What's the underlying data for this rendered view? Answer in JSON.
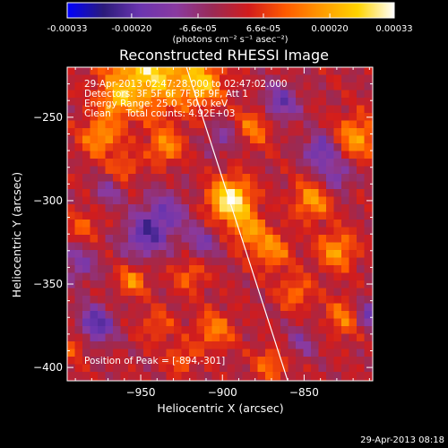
{
  "colors": {
    "background": "#000000",
    "foreground": "#ffffff",
    "limb": "#ffffff",
    "colormap": [
      "#0000ff",
      "#2b1b7a",
      "#6b35b0",
      "#8a3aa0",
      "#9a2a55",
      "#d21c1c",
      "#ff5a00",
      "#ff9a00",
      "#ffd400",
      "#ffffff"
    ]
  },
  "colorbar": {
    "min": -0.00033,
    "max": 0.00033,
    "tick_labels": [
      "-0.00033",
      "-0.00020",
      "-6.6e-05",
      "6.6e-05",
      "0.00020",
      "0.00033"
    ],
    "tick_values": [
      -0.00033,
      -0.0002,
      -6.6e-05,
      6.6e-05,
      0.0002,
      0.00033
    ],
    "units_label": "(photons cm⁻² s⁻¹ asec⁻²)"
  },
  "chart_data": {
    "type": "heatmap",
    "title": "Reconstructed RHESSI Image",
    "xlabel": "Heliocentric X (arcsec)",
    "ylabel": "Heliocentric Y (arcsec)",
    "xlim": [
      -995,
      -808
    ],
    "ylim": [
      -408,
      -220
    ],
    "x_ticks": [
      -950,
      -900,
      -850
    ],
    "y_ticks": [
      -250,
      -300,
      -350,
      -400
    ],
    "x_tick_labels": [
      "−950",
      "−900",
      "−850"
    ],
    "y_tick_labels": [
      "−250",
      "−300",
      "−350",
      "−400"
    ],
    "peak": [
      -894,
      -301
    ],
    "limb_points": [
      [
        -922,
        -220
      ],
      [
        -860,
        -408
      ]
    ],
    "annotations": {
      "time_range": "29-Apr-2013 02:47:28.000 to 02:47:02.000",
      "detectors": "Detectors: 3F 5F 6F 7F 8F 9F, Att 1",
      "energy": "Energy Range: 25.0 - 50.0 keV",
      "clean": "Clean     Total counts: 4.92E+03",
      "peak_position": "Position of Peak = [-894,-301]"
    },
    "hotspots": [
      {
        "x": -895,
        "y": -300,
        "amp": 1.0,
        "sigma": 9
      },
      {
        "x": -945,
        "y": -222,
        "amp": 0.8,
        "sigma": 18
      },
      {
        "x": -912,
        "y": -230,
        "amp": 0.6,
        "sigma": 9
      },
      {
        "x": -975,
        "y": -262,
        "amp": 0.55,
        "sigma": 8
      },
      {
        "x": -935,
        "y": -268,
        "amp": 0.5,
        "sigma": 7
      },
      {
        "x": -960,
        "y": -280,
        "amp": 0.35,
        "sigma": 6
      },
      {
        "x": -880,
        "y": -255,
        "amp": 0.45,
        "sigma": 8
      },
      {
        "x": -818,
        "y": -262,
        "amp": 0.55,
        "sigma": 9
      },
      {
        "x": -845,
        "y": -300,
        "amp": 0.55,
        "sigma": 8
      },
      {
        "x": -830,
        "y": -330,
        "amp": 0.55,
        "sigma": 8
      },
      {
        "x": -870,
        "y": -330,
        "amp": 0.5,
        "sigma": 8
      },
      {
        "x": -884,
        "y": -318,
        "amp": 0.5,
        "sigma": 7
      },
      {
        "x": -955,
        "y": -348,
        "amp": 0.5,
        "sigma": 6
      },
      {
        "x": -920,
        "y": -345,
        "amp": 0.35,
        "sigma": 7
      },
      {
        "x": -855,
        "y": -355,
        "amp": 0.4,
        "sigma": 7
      },
      {
        "x": -825,
        "y": -370,
        "amp": 0.45,
        "sigma": 8
      },
      {
        "x": -940,
        "y": -375,
        "amp": 0.3,
        "sigma": 7
      },
      {
        "x": -905,
        "y": -378,
        "amp": 0.45,
        "sigma": 8
      },
      {
        "x": -870,
        "y": -398,
        "amp": 0.4,
        "sigma": 7
      },
      {
        "x": -990,
        "y": -385,
        "amp": 0.35,
        "sigma": 7
      },
      {
        "x": -985,
        "y": -315,
        "amp": 0.3,
        "sigma": 7
      },
      {
        "x": -925,
        "y": -395,
        "amp": 0.35,
        "sigma": 6
      },
      {
        "x": -965,
        "y": -240,
        "amp": 0.45,
        "sigma": 7
      },
      {
        "x": -935,
        "y": -308,
        "amp": -0.45,
        "sigma": 10
      },
      {
        "x": -948,
        "y": -322,
        "amp": -0.55,
        "sigma": 9
      },
      {
        "x": -978,
        "y": -375,
        "amp": -0.7,
        "sigma": 8
      },
      {
        "x": -865,
        "y": -242,
        "amp": -0.55,
        "sigma": 8
      },
      {
        "x": -840,
        "y": -270,
        "amp": -0.6,
        "sigma": 7
      },
      {
        "x": -830,
        "y": -285,
        "amp": -0.45,
        "sigma": 7
      },
      {
        "x": -810,
        "y": -368,
        "amp": -0.55,
        "sigma": 7
      },
      {
        "x": -988,
        "y": -338,
        "amp": -0.4,
        "sigma": 8
      },
      {
        "x": -912,
        "y": -325,
        "amp": -0.4,
        "sigma": 7
      },
      {
        "x": -852,
        "y": -385,
        "amp": -0.3,
        "sigma": 7
      },
      {
        "x": -970,
        "y": -295,
        "amp": -0.35,
        "sigma": 6
      },
      {
        "x": -900,
        "y": -262,
        "amp": -0.35,
        "sigma": 7
      }
    ]
  },
  "timestamp": "29-Apr-2013 08:18"
}
